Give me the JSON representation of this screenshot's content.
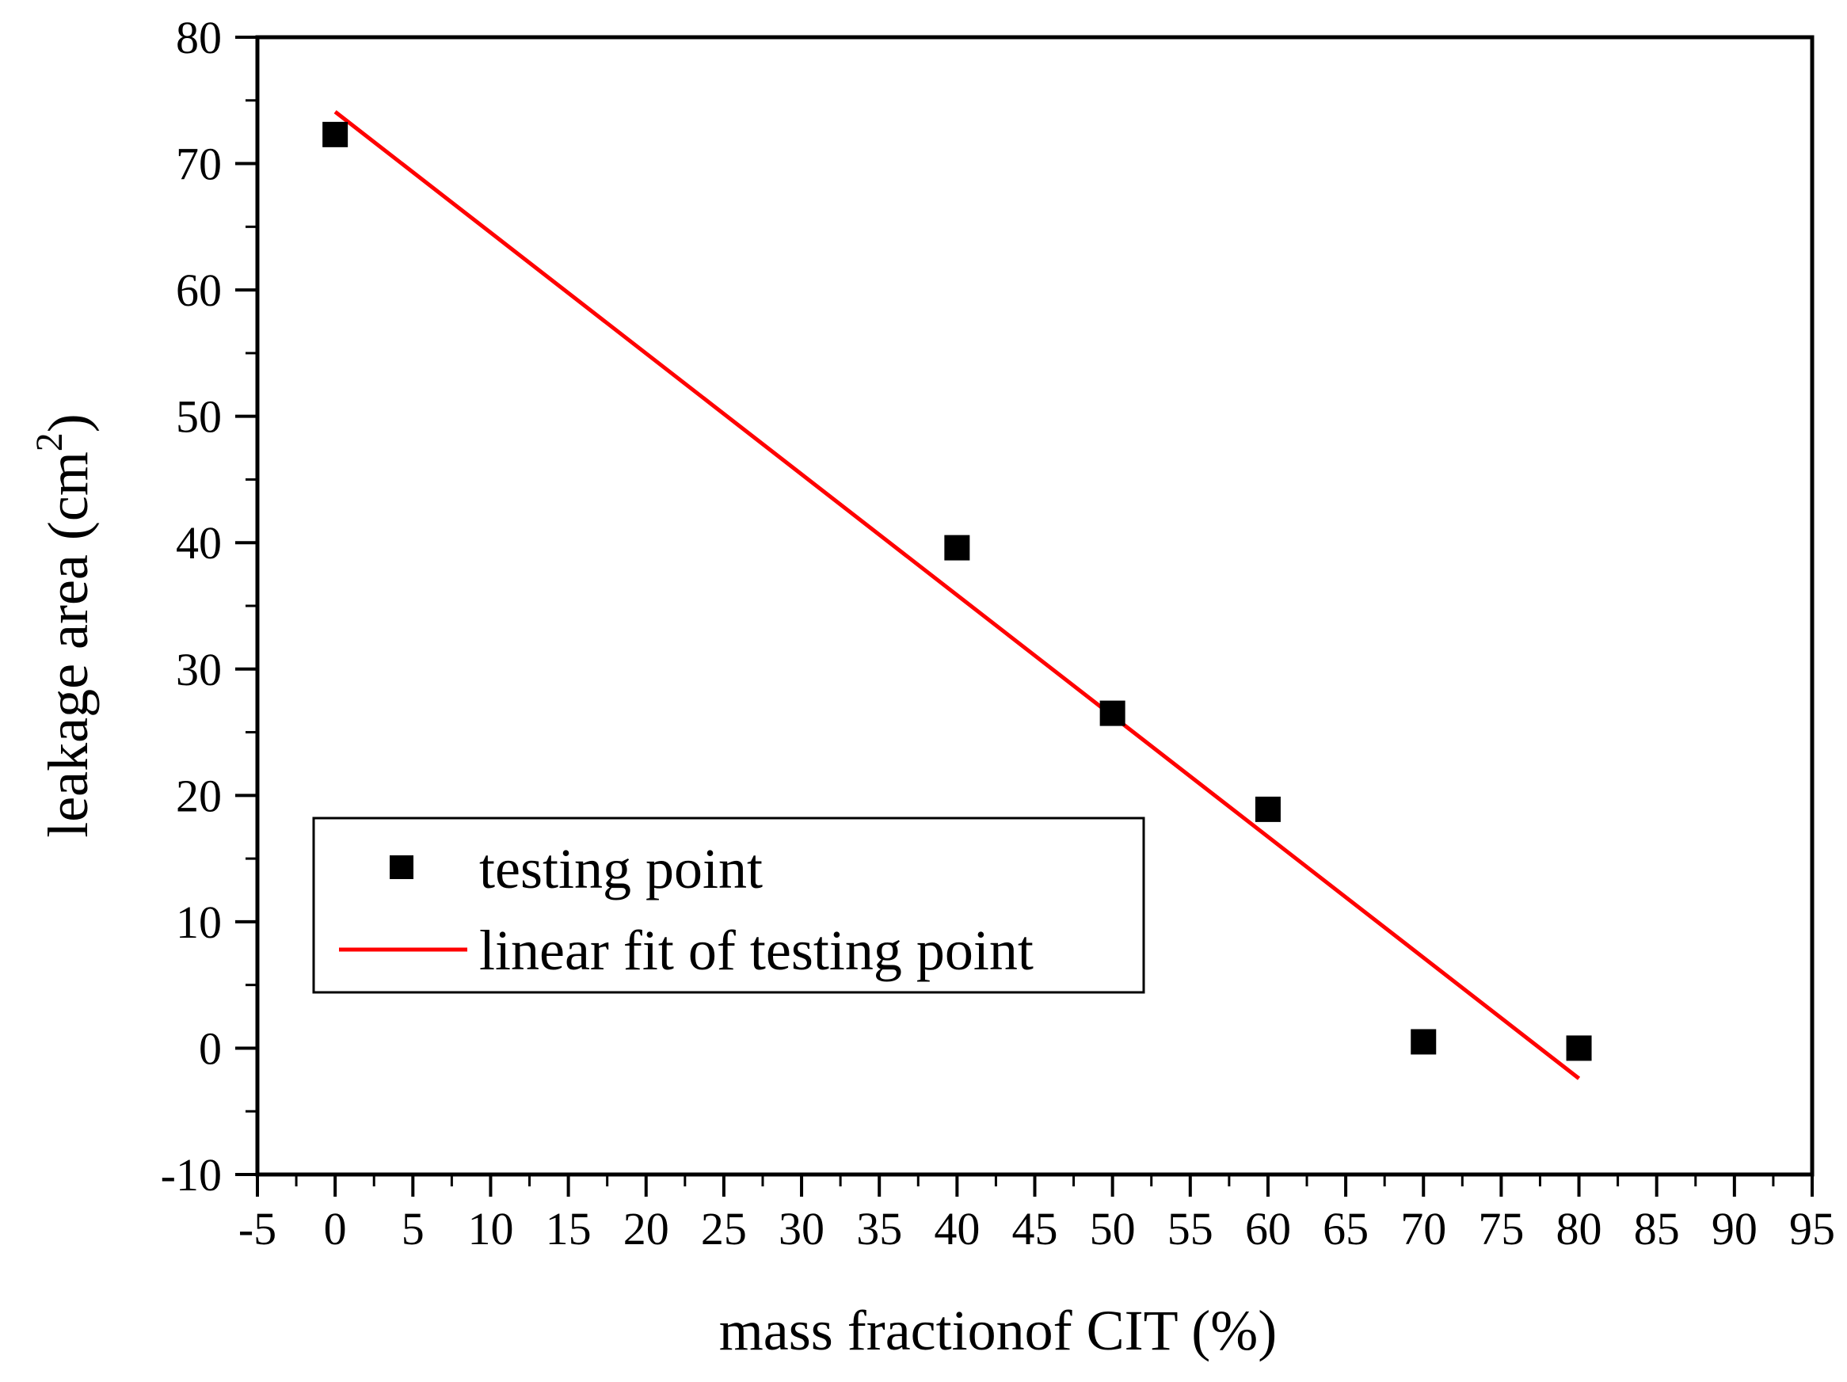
{
  "chart_data": {
    "type": "scatter",
    "title": "",
    "xlabel": "mass fractionof CIT (%)",
    "ylabel": {
      "main": "leakage area (cm",
      "sup": "2",
      "end": ")"
    },
    "xlim": [
      -5,
      95
    ],
    "ylim": [
      -10,
      80
    ],
    "xticks": [
      -5,
      0,
      5,
      10,
      15,
      20,
      25,
      30,
      35,
      40,
      45,
      50,
      55,
      60,
      65,
      70,
      75,
      80,
      85,
      90,
      95
    ],
    "xtick_labels": [
      "-5",
      "0",
      "5",
      "10",
      "15",
      "20",
      "25",
      "30",
      "35",
      "40",
      "45",
      "50",
      "55",
      "60",
      "65",
      "70",
      "75",
      "80",
      "85",
      "90",
      "95"
    ],
    "yticks": [
      -10,
      0,
      10,
      20,
      30,
      40,
      50,
      60,
      70,
      80
    ],
    "ytick_labels": [
      "-10",
      "0",
      "10",
      "20",
      "30",
      "40",
      "50",
      "60",
      "70",
      "80"
    ],
    "grid": false,
    "legend_position": "lower-left",
    "series": [
      {
        "name": "testing point",
        "type": "scatter",
        "marker": "square",
        "color": "#000000",
        "x": [
          0,
          40,
          50,
          60,
          70,
          80
        ],
        "y": [
          72.3,
          39.6,
          26.5,
          18.9,
          0.5,
          0.0
        ]
      },
      {
        "name": "linear fit of testing point",
        "type": "line",
        "color": "#ff0000",
        "x": [
          0,
          80
        ],
        "y": [
          74.1,
          -2.4
        ]
      }
    ]
  }
}
